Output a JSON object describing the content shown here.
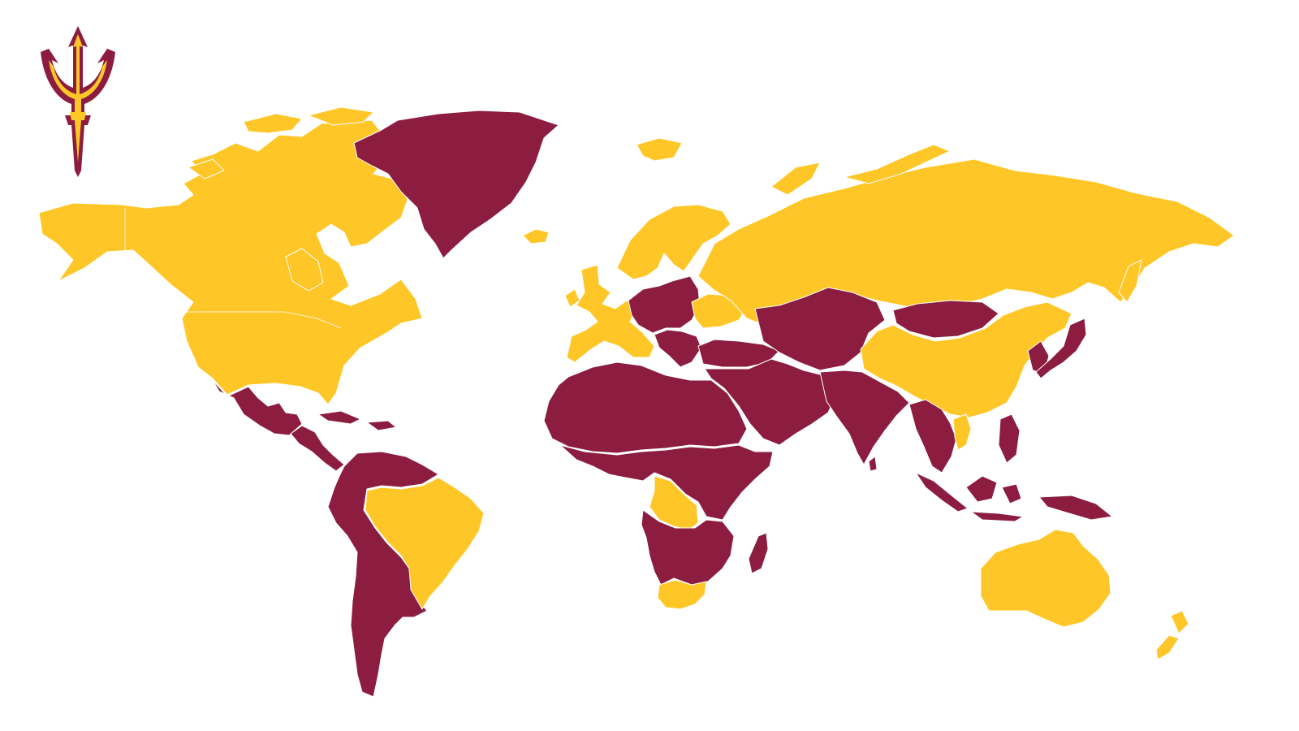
{
  "map": {
    "legend_categories": [
      {
        "key": "gold",
        "color": "#FFC627"
      },
      {
        "key": "maroon",
        "color": "#8C1D40"
      }
    ],
    "background_color": "#ffffff",
    "regions": {
      "north-america": "gold",
      "greenland": "maroon",
      "iceland": "gold",
      "svalbard": "gold",
      "mexico": "maroon",
      "central-america": "maroon",
      "caribbean": "maroon",
      "south-america": "maroon",
      "brazil": "gold",
      "western-europe": "gold",
      "scandinavia": "gold",
      "central-europe": "maroon",
      "balkans": "maroon",
      "ukraine": "gold",
      "russia": "gold",
      "turkey": "maroon",
      "central-asia": "maroon",
      "mongolia": "maroon",
      "china": "gold",
      "korea": "maroon",
      "japan": "maroon",
      "middle-east": "maroon",
      "south-asia": "maroon",
      "southeast-asia": "maroon",
      "vietnam": "gold",
      "indonesia": "maroon",
      "north-africa": "maroon",
      "central-africa": "maroon",
      "dr-congo": "gold",
      "southern-africa": "maroon",
      "south-africa": "gold",
      "madagascar": "maroon",
      "australia": "gold",
      "new-zealand": "gold"
    }
  },
  "logo": {
    "icon": "pitchfork-icon",
    "outer_color": "#8C1D40",
    "inner_color": "#FFC627"
  }
}
